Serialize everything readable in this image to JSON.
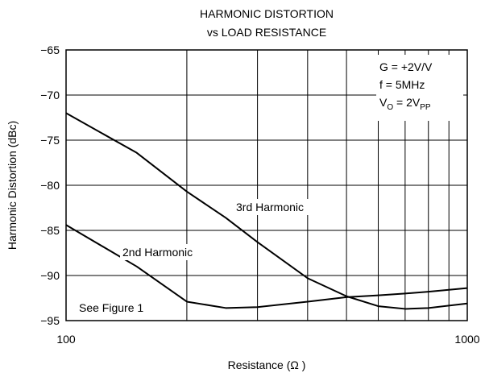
{
  "chart_data": {
    "type": "line",
    "title": "HARMONIC DISTORTION",
    "subtitle": "vs LOAD RESISTANCE",
    "x_label": "Resistance (Ω )",
    "y_label": "Harmonic Distortion (dBc)",
    "x": [
      100,
      150,
      200,
      250,
      300,
      400,
      500,
      600,
      700,
      800,
      1000
    ],
    "series": [
      {
        "name": "3rd Harmonic",
        "color": "#000000",
        "values": [
          -72,
          -76.4,
          -80.7,
          -83.6,
          -86.3,
          -90.3,
          -92.3,
          -93.4,
          -93.7,
          -93.6,
          -93.1
        ]
      },
      {
        "name": "2nd Harmonic",
        "color": "#000000",
        "values": [
          -84.4,
          -89,
          -92.9,
          -93.6,
          -93.5,
          -92.9,
          -92.4,
          -92.2,
          -92.0,
          -91.8,
          -91.4
        ]
      }
    ],
    "xlim": [
      100,
      1000
    ],
    "x_log": true,
    "xticks": [
      100,
      1000
    ],
    "x_minor_ticks": [
      200,
      300,
      400,
      500,
      600,
      700,
      800,
      900
    ],
    "ylim": [
      -95,
      -65
    ],
    "yticks": [
      {
        "value": -65,
        "label": "−65"
      },
      {
        "value": -70,
        "label": "−70"
      },
      {
        "value": -75,
        "label": "−75"
      },
      {
        "value": -80,
        "label": "−80"
      },
      {
        "value": -85,
        "label": "−85"
      },
      {
        "value": -90,
        "label": "−90"
      },
      {
        "value": -95,
        "label": "−95"
      }
    ],
    "grid": true,
    "conditions": [
      "G = +2V/V",
      "f = 5MHz"
    ],
    "vo_condition": [
      {
        "text": "V"
      },
      {
        "text": "O",
        "sub": true
      },
      {
        "text": " = 2V"
      },
      {
        "text": "PP",
        "sub": true
      }
    ],
    "note": "See Figure 1"
  }
}
